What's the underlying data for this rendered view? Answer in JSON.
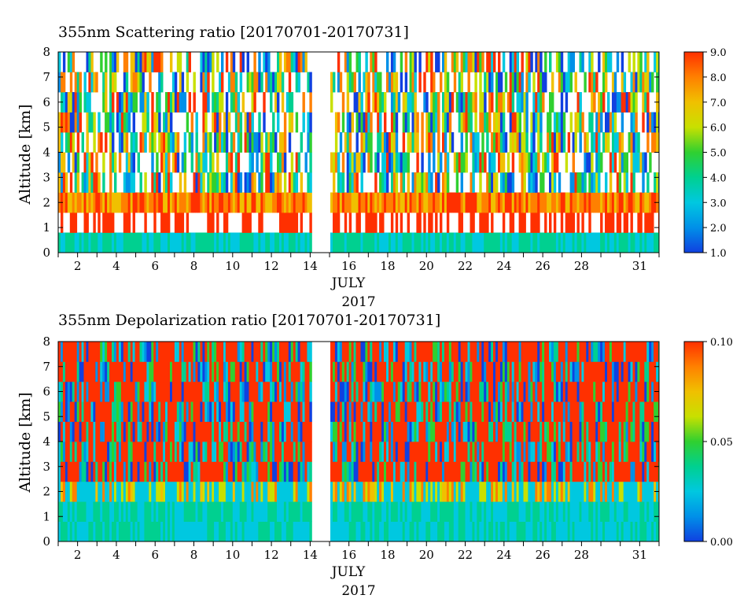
{
  "chart_data": [
    {
      "type": "heatmap",
      "title": "355nm Scattering ratio [20170701-20170731]",
      "ylabel": "Altitude [km]",
      "xlabel": "JULY",
      "xlabel2": "2017",
      "x_ticks": [
        "2",
        "4",
        "6",
        "8",
        "10",
        "12",
        "14",
        "16",
        "18",
        "20",
        "22",
        "24",
        "26",
        "28",
        "31"
      ],
      "y_ticks": [
        "0",
        "1",
        "2",
        "3",
        "4",
        "5",
        "6",
        "7",
        "8"
      ],
      "xlim": [
        1,
        32
      ],
      "ylim": [
        0,
        8
      ],
      "data_gap": [
        14,
        15
      ],
      "colorbar": {
        "min": 1.0,
        "max": 9.0,
        "ticks": [
          "1.0",
          "2.0",
          "3.0",
          "4.0",
          "5.0",
          "6.0",
          "7.0",
          "8.0",
          "9.0"
        ]
      },
      "colormap": [
        "#1040e0",
        "#0090e8",
        "#00c8e0",
        "#00d090",
        "#30d030",
        "#c8e000",
        "#f0c000",
        "#ff8000",
        "#ff3000"
      ]
    },
    {
      "type": "heatmap",
      "title": "355nm Depolarization ratio [20170701-20170731]",
      "ylabel": "Altitude [km]",
      "xlabel": "JULY",
      "xlabel2": "2017",
      "x_ticks": [
        "2",
        "4",
        "6",
        "8",
        "10",
        "12",
        "14",
        "16",
        "18",
        "20",
        "22",
        "24",
        "26",
        "28",
        "31"
      ],
      "y_ticks": [
        "0",
        "1",
        "2",
        "3",
        "4",
        "5",
        "6",
        "7",
        "8"
      ],
      "xlim": [
        1,
        32
      ],
      "ylim": [
        0,
        8
      ],
      "data_gap": [
        14,
        15
      ],
      "colorbar": {
        "min": 0.0,
        "max": 0.1,
        "ticks": [
          "0.00",
          "0.05",
          "0.10"
        ]
      },
      "colormap": [
        "#1040e0",
        "#0090e8",
        "#00c8e0",
        "#00d090",
        "#30d030",
        "#c8e000",
        "#f0c000",
        "#ff8000",
        "#ff3000"
      ]
    }
  ]
}
